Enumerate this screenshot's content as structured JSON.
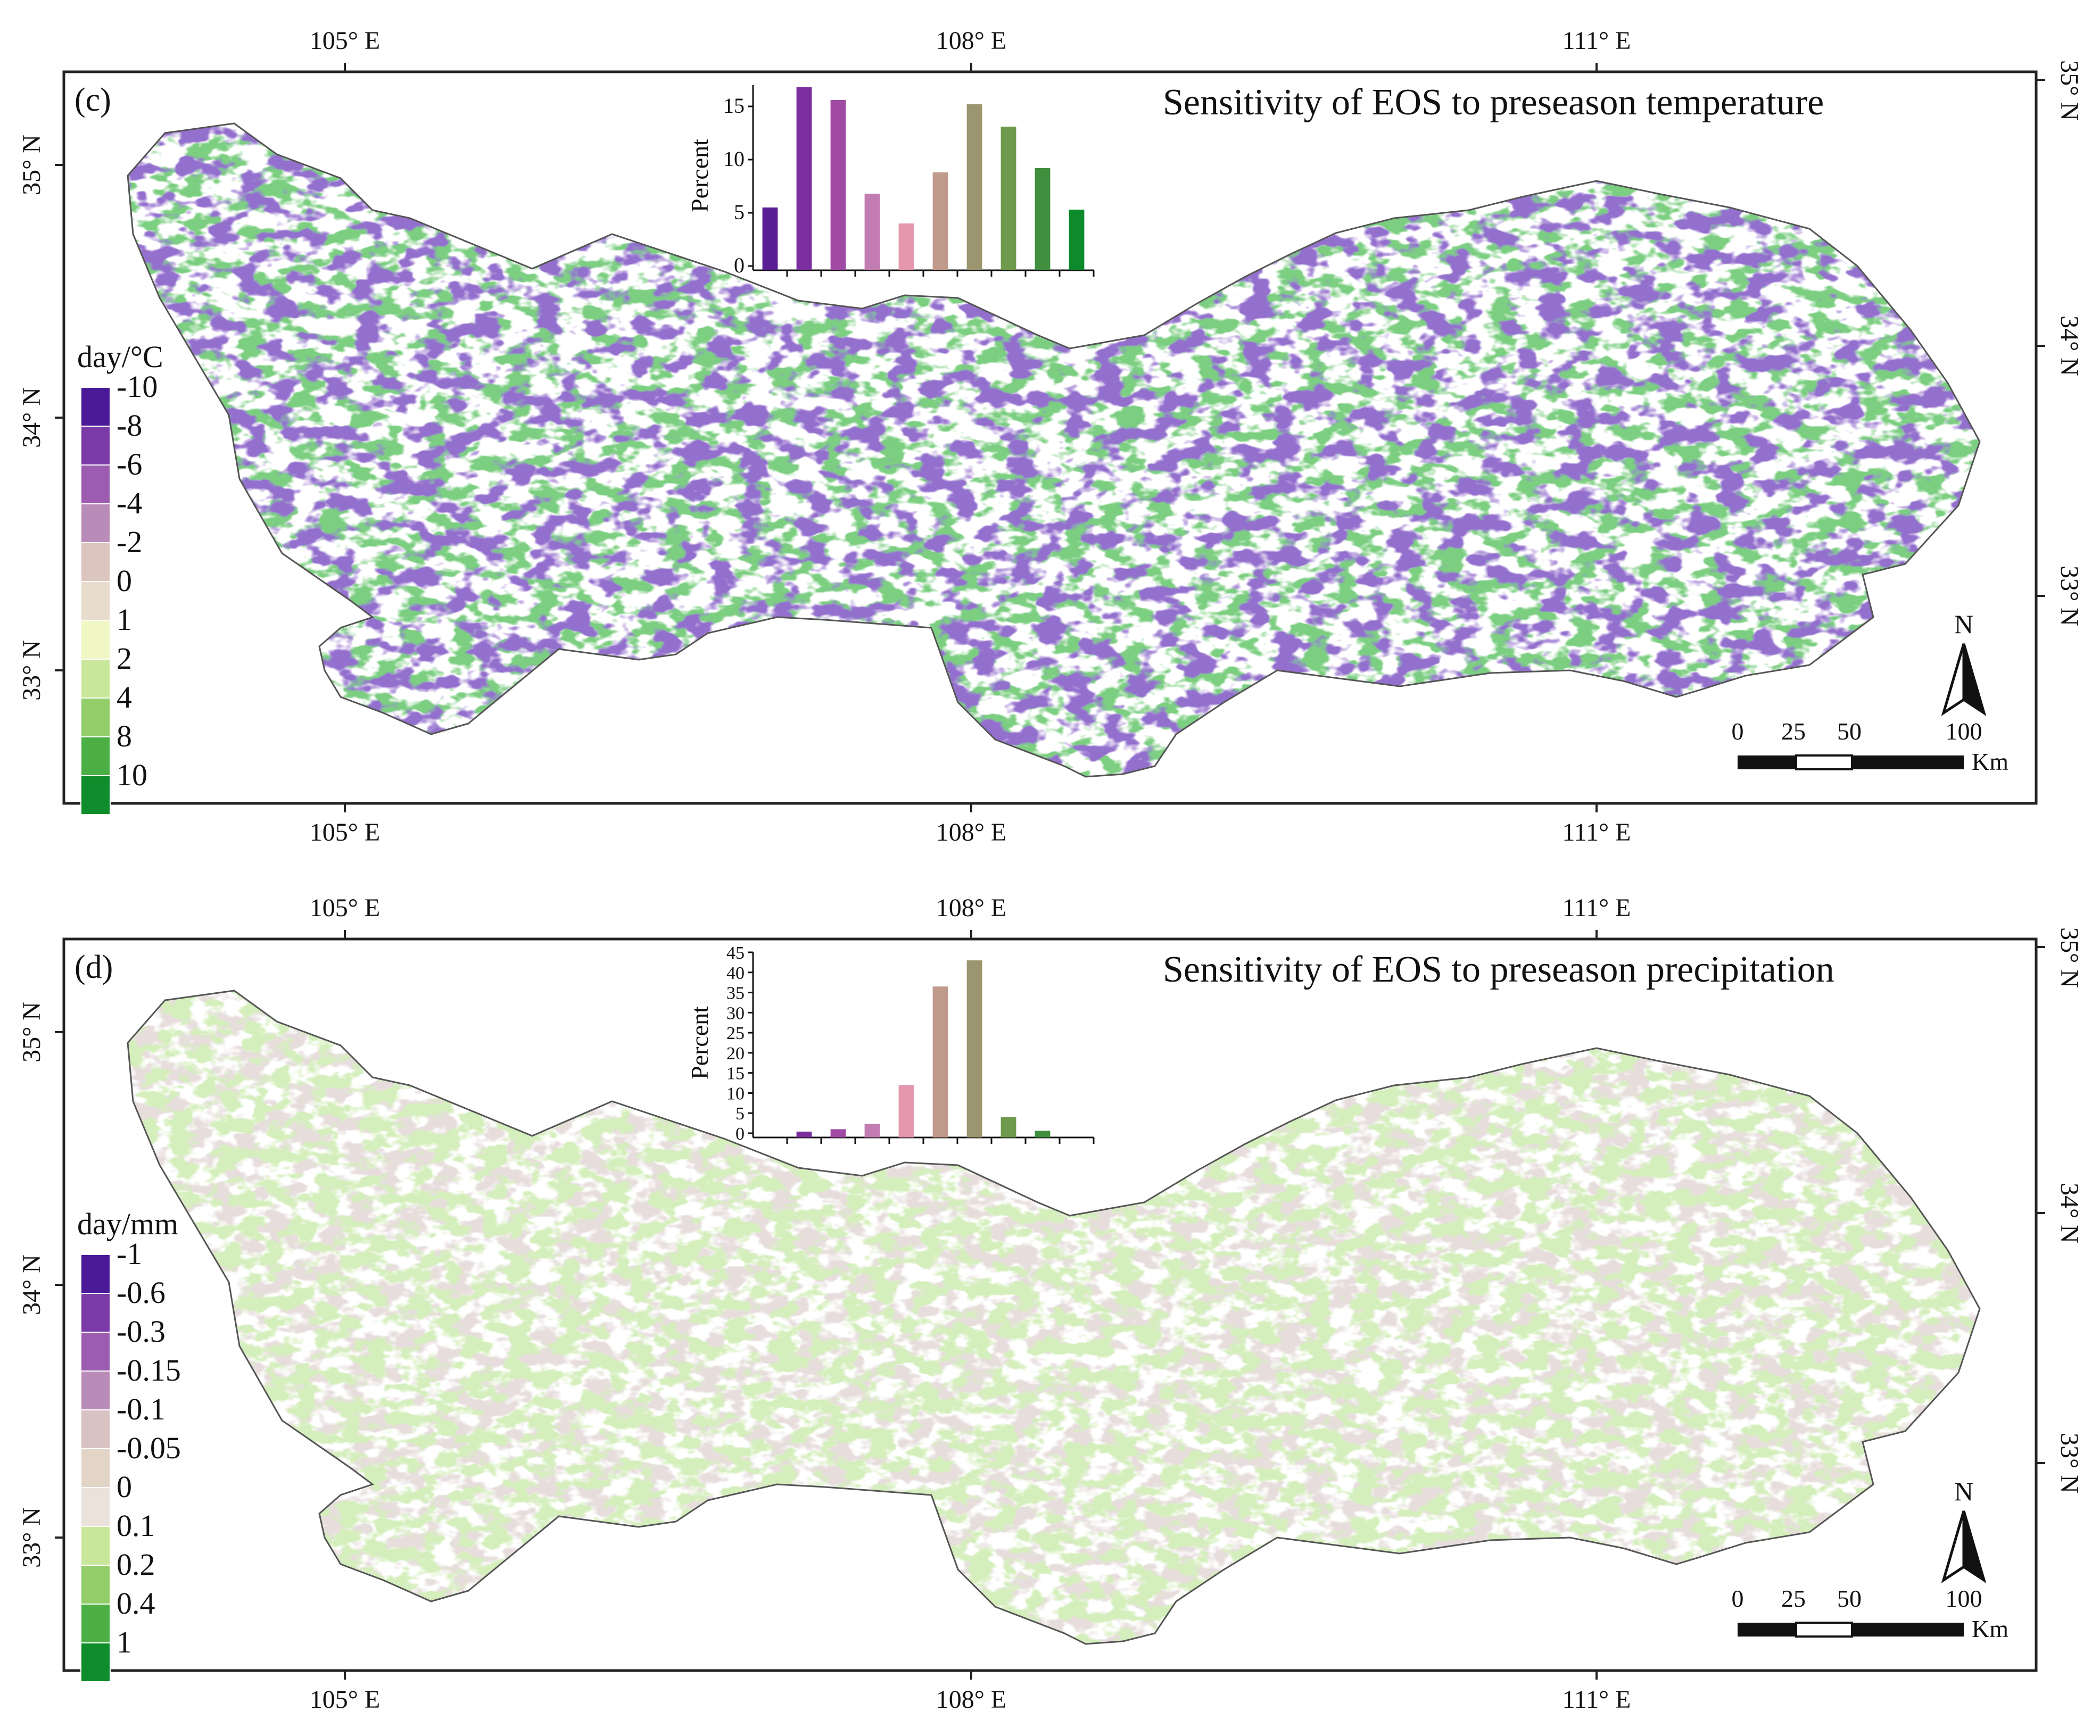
{
  "panels": [
    {
      "id": "c",
      "label": "(c)",
      "title": "Sensitivity of EOS to preseason temperature",
      "lon_ticks": [
        "105° E",
        "108° E",
        "111° E"
      ],
      "lat_ticks": [
        "35° N",
        "34° N",
        "33° N"
      ],
      "legend": {
        "unit": "day/°C",
        "labels": [
          "-10",
          "-8",
          "-6",
          "-4",
          "-2",
          "0",
          "1",
          "2",
          "4",
          "8",
          "10"
        ],
        "colors": [
          "#4b1a98",
          "#7a3aa8",
          "#9c5cb0",
          "#b98bb8",
          "#dcc4bf",
          "#e8dccc",
          "#f0f7c4",
          "#c8e79a",
          "#92cd6a",
          "#4caf45",
          "#0f8c2b"
        ]
      },
      "scalebar": {
        "ticks": [
          "0",
          "25",
          "50",
          "100"
        ],
        "unit": "Km"
      },
      "north_label": "N",
      "inset": {
        "chart_data": {
          "type": "bar",
          "ylabel": "Percent",
          "ylim": [
            0,
            17
          ],
          "yticks": [
            "0",
            "5",
            "10",
            "15"
          ],
          "values": [
            5.5,
            16.8,
            15.6,
            6.8,
            4.0,
            8.8,
            15.2,
            13.1,
            9.2,
            5.3
          ],
          "colors": [
            "#5a1f95",
            "#7b2f9e",
            "#a04aa4",
            "#c27cb2",
            "#e597ad",
            "#c09a8a",
            "#9c9670",
            "#6e9a4c",
            "#3f8f3f",
            "#0d8a2c"
          ]
        }
      }
    },
    {
      "id": "d",
      "label": "(d)",
      "title": "Sensitivity of EOS to preseason precipitation",
      "lon_ticks": [
        "105° E",
        "108° E",
        "111° E"
      ],
      "lat_ticks": [
        "35° N",
        "34° N",
        "33° N"
      ],
      "legend": {
        "unit": "day/mm",
        "labels": [
          "-1",
          "-0.6",
          "-0.3",
          "-0.15",
          "-0.1",
          "-0.05",
          "0",
          "0.1",
          "0.2",
          "0.4",
          "1"
        ],
        "colors": [
          "#4b1a98",
          "#7a3aa8",
          "#9c5cb0",
          "#b98bb8",
          "#d8c2c2",
          "#e3d4c8",
          "#ece2dc",
          "#c8e79a",
          "#92cd6a",
          "#4caf45",
          "#0f8c2b"
        ]
      },
      "scalebar": {
        "ticks": [
          "0",
          "25",
          "50",
          "100"
        ],
        "unit": "Km"
      },
      "north_label": "N",
      "inset": {
        "chart_data": {
          "type": "bar",
          "ylabel": "Percent",
          "ylim": [
            0,
            45
          ],
          "yticks": [
            "0",
            "5",
            "10",
            "15",
            "20",
            "25",
            "30",
            "35",
            "40",
            "45"
          ],
          "values": [
            0,
            0.4,
            1.0,
            2.3,
            12.0,
            36.5,
            43.0,
            4.0,
            0.6,
            0
          ],
          "colors": [
            "#5a1f95",
            "#7b2f9e",
            "#a04aa4",
            "#c27cb2",
            "#e597ad",
            "#c09a8a",
            "#9c9670",
            "#6e9a4c",
            "#3f8f3f",
            "#0d8a2c"
          ]
        }
      }
    }
  ]
}
